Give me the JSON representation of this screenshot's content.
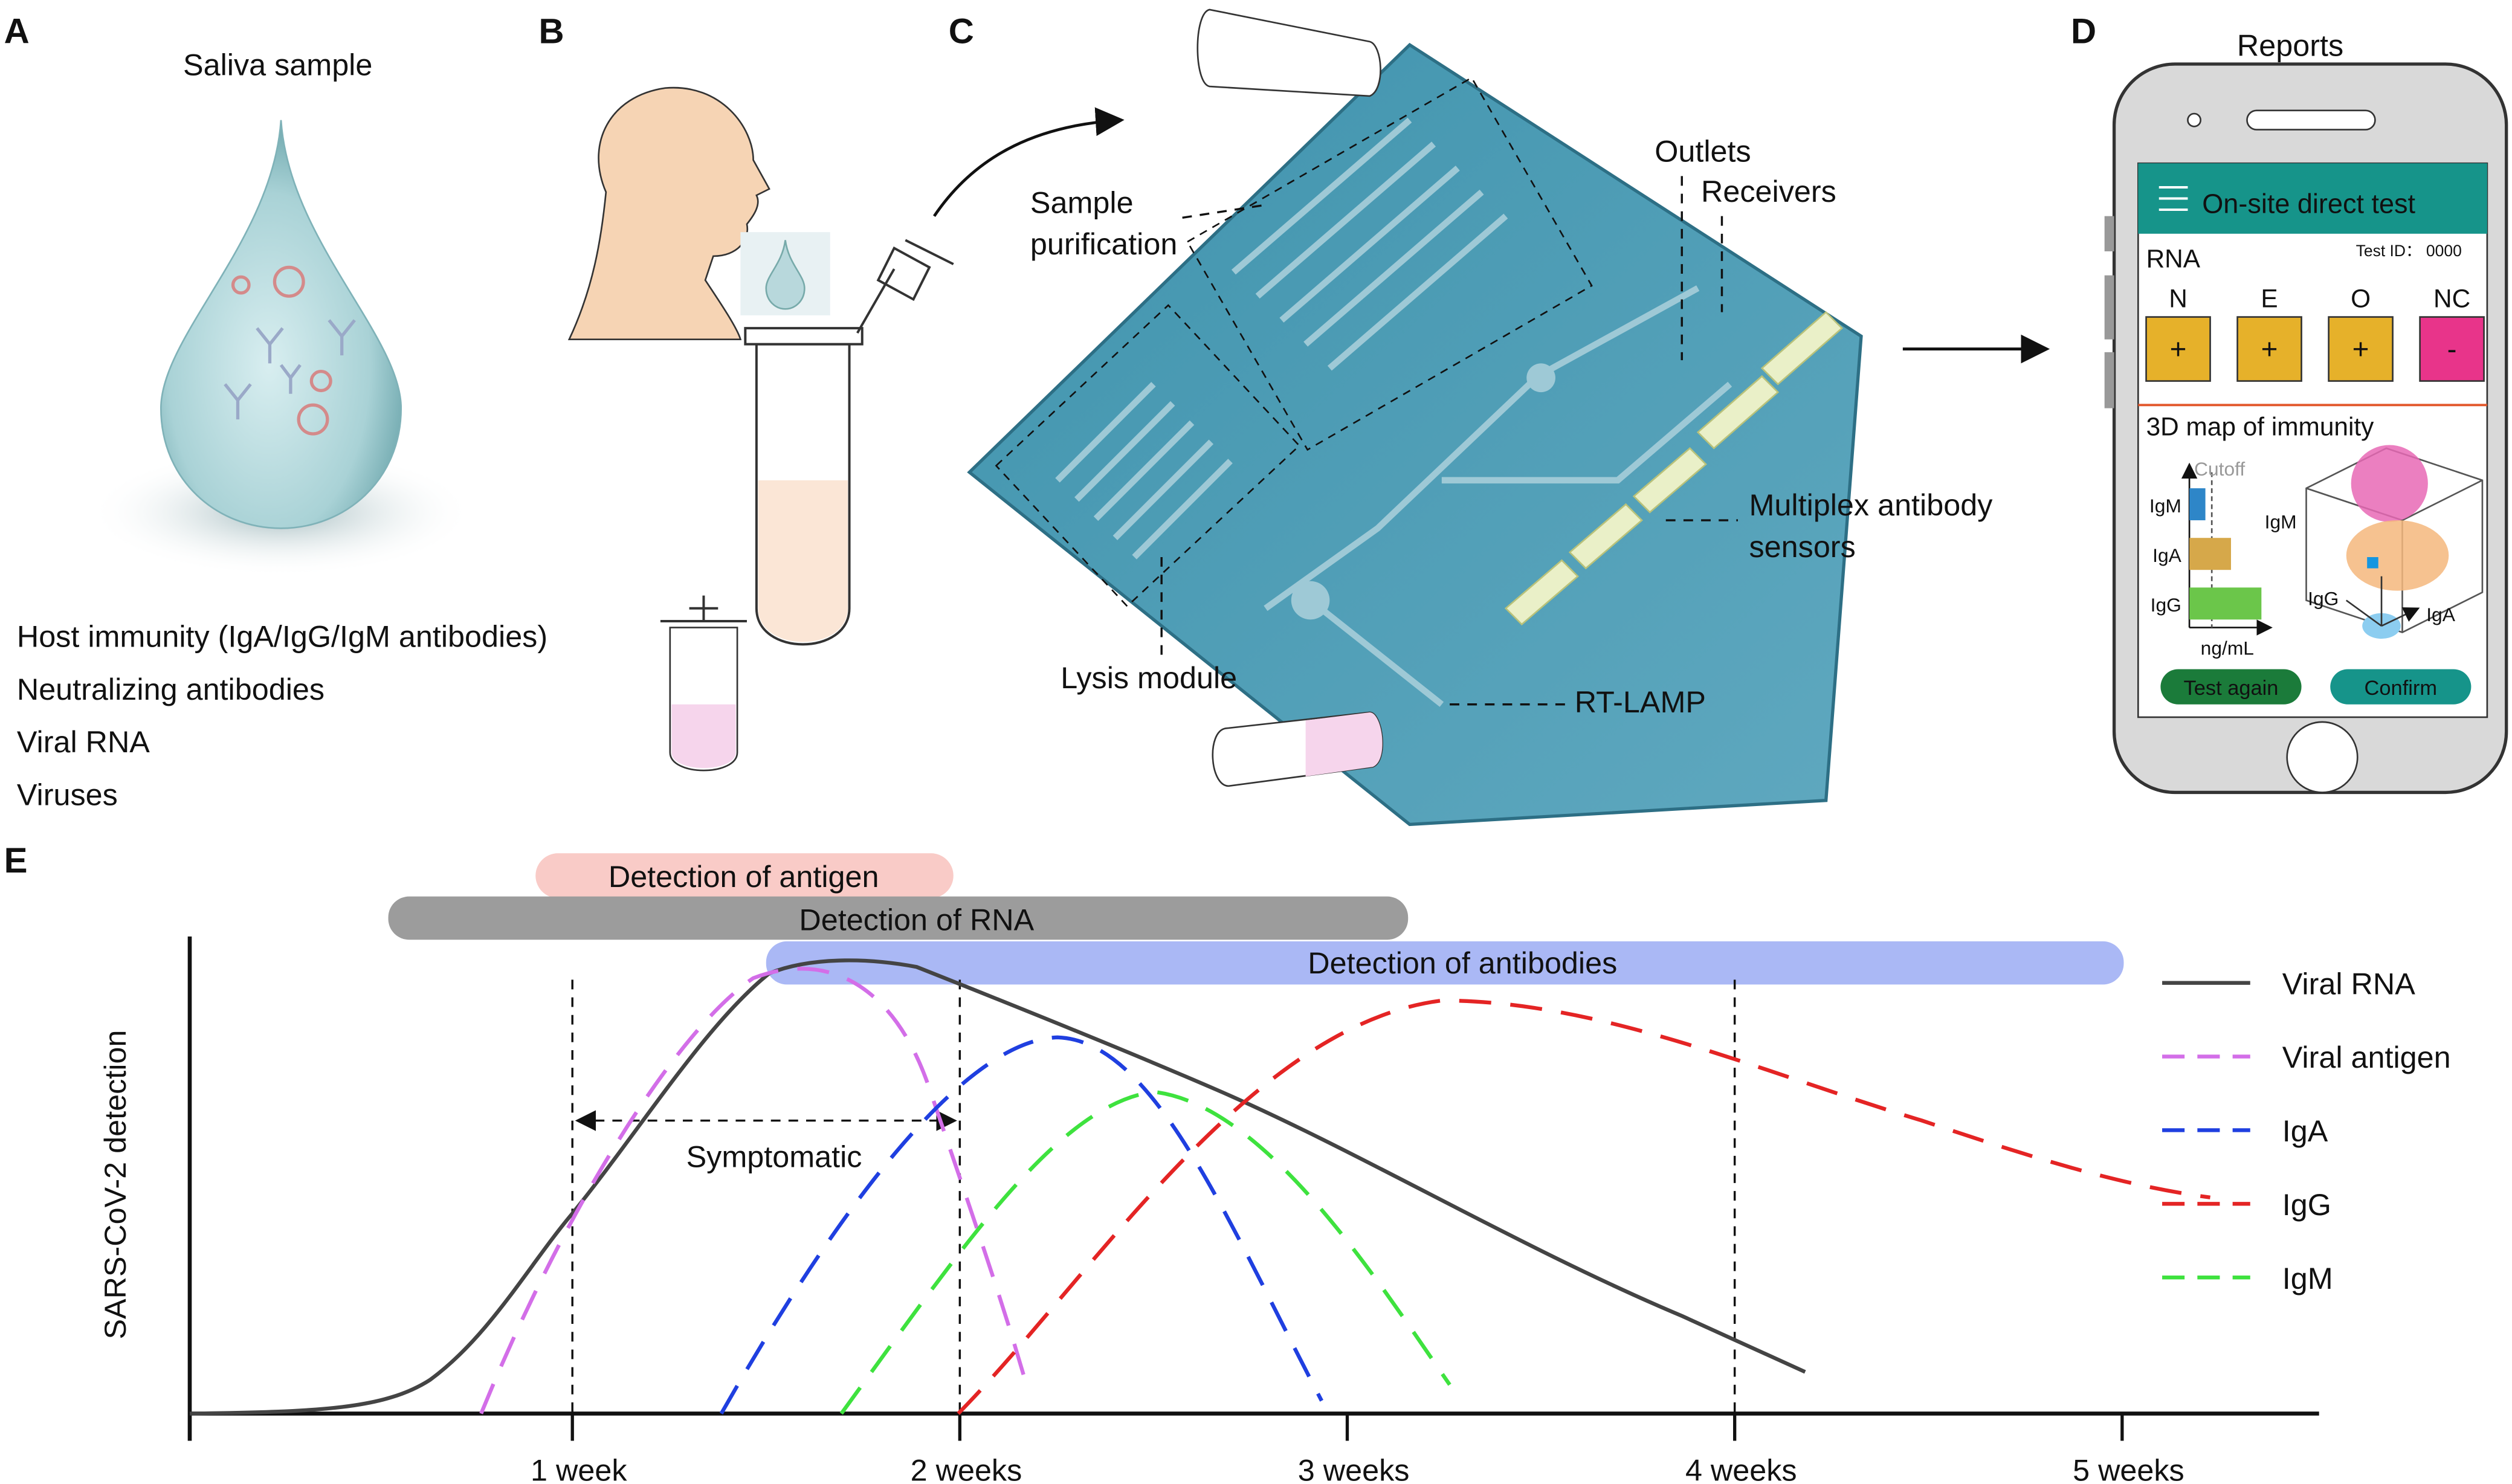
{
  "panel_a": {
    "letter": "A",
    "title": "Saliva sample",
    "items": [
      "Host immunity (IgA/IgG/IgM antibodies)",
      "Neutralizing antibodies",
      "Viral RNA",
      "Viruses"
    ]
  },
  "panel_b": {
    "letter": "B"
  },
  "panel_c": {
    "letter": "C",
    "labels": {
      "sample_purification": [
        "Sample",
        "purification"
      ],
      "outlets": "Outlets",
      "receivers": "Receivers",
      "multiplex": [
        "Multiplex antibody",
        "sensors"
      ],
      "lysis": "Lysis module",
      "rt_lamp": "RT-LAMP"
    }
  },
  "panel_d": {
    "letter": "D",
    "title": "Reports",
    "app": {
      "header": "On-site direct test",
      "rna_label": "RNA",
      "test_id": "Test ID： 0000",
      "targets": [
        "N",
        "E",
        "O",
        "NC"
      ],
      "results": [
        "+",
        "+",
        "+",
        "-"
      ],
      "map_title": "3D map of immunity",
      "cutoff": "Cutoff",
      "bar_labels": [
        "IgM",
        "IgA",
        "IgG"
      ],
      "unit": "ng/mL",
      "axes_3d": [
        "IgM",
        "IgG",
        "IgA"
      ],
      "buttons": [
        "Test again",
        "Confirm"
      ]
    }
  },
  "panel_e": {
    "letter": "E",
    "detection_bars": [
      "Detection of antigen",
      "Detection of RNA",
      "Detection of antibodies"
    ],
    "y_label": "SARS-CoV-2 detection",
    "annotation": "Symptomatic",
    "x_ticks": [
      "1 week",
      "2 weeks",
      "3 weeks",
      "4 weeks",
      "5 weeks"
    ],
    "legend": [
      "Viral RNA",
      "Viral antigen",
      "IgA",
      "IgG",
      "IgM"
    ]
  }
}
